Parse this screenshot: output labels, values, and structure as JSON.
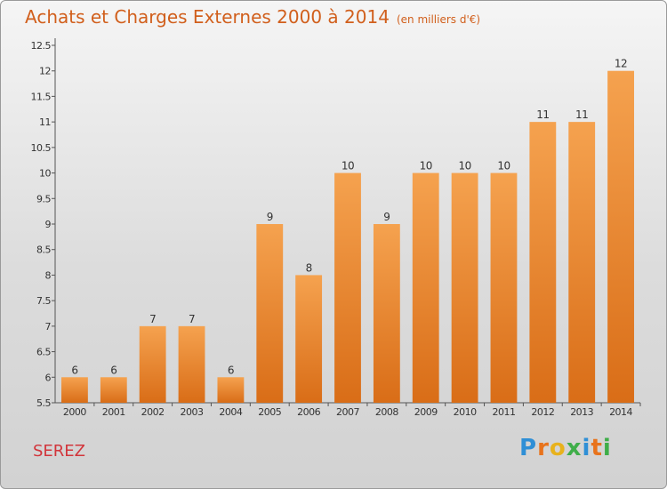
{
  "header": {
    "title": "Achats et Charges Externes 2000 à 2014",
    "subtitle": "(en milliers d'€)"
  },
  "footer": {
    "city": "SEREZ",
    "logo_text": "Proxiti"
  },
  "colors": {
    "bar_top": "#f5a24f",
    "bar_bottom": "#d96d17",
    "title": "#d15f1c",
    "city": "#d2353b"
  },
  "chart_data": {
    "type": "bar",
    "categories": [
      "2000",
      "2001",
      "2002",
      "2003",
      "2004",
      "2005",
      "2006",
      "2007",
      "2008",
      "2009",
      "2010",
      "2011",
      "2012",
      "2013",
      "2014"
    ],
    "values": [
      6,
      6,
      7,
      7,
      6,
      9,
      8,
      10,
      9,
      10,
      10,
      10,
      11,
      11,
      12
    ],
    "data_labels": [
      "6",
      "6",
      "7",
      "7",
      "6",
      "9",
      "8",
      "10",
      "9",
      "10",
      "10",
      "10",
      "11",
      "11",
      "12"
    ],
    "yticks": [
      "5.5",
      "6",
      "6.5",
      "7",
      "7.5",
      "8",
      "8.5",
      "9",
      "9.5",
      "10",
      "10.5",
      "11",
      "11.5",
      "12",
      "12.5"
    ],
    "ylim": [
      5.5,
      12.5
    ],
    "grid": false,
    "legend": "none"
  }
}
